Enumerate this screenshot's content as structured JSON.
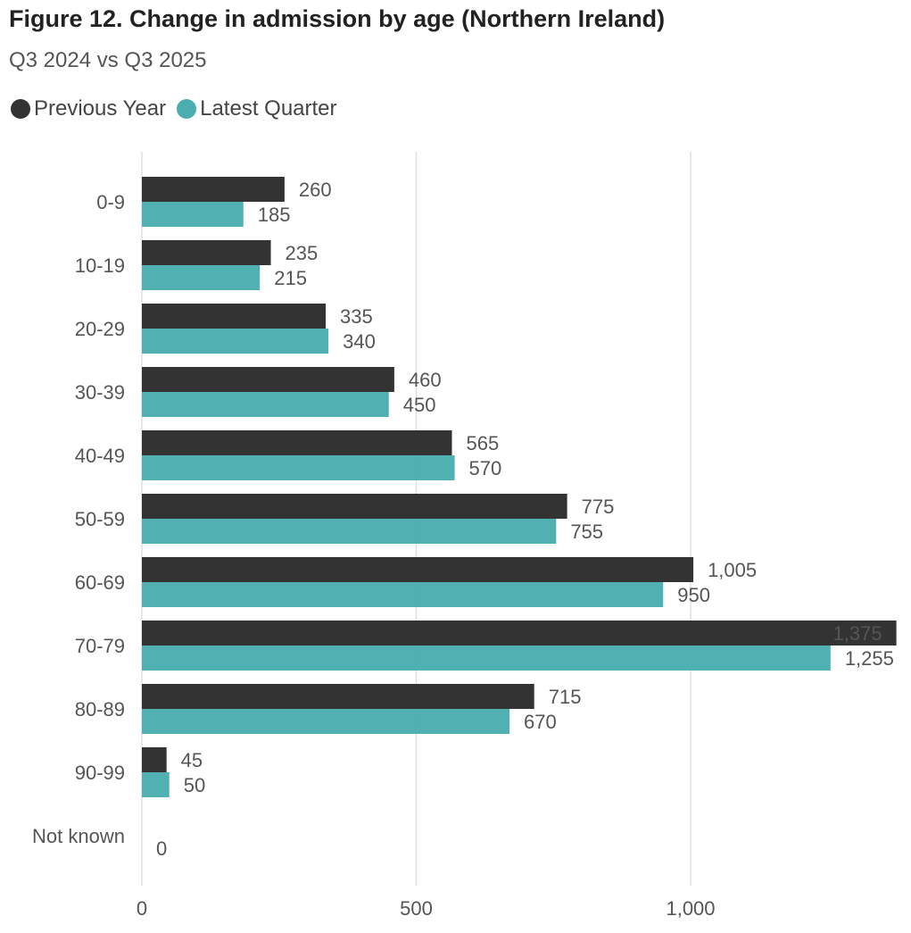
{
  "title": "Figure 12. Change in admission by age (Northern Ireland)",
  "subtitle": "Q3 2024 vs Q3 2025",
  "colors": {
    "previous": "#333333",
    "latest": "#4aadb0",
    "grid": "#e0e0e0",
    "axis_text": "#555555"
  },
  "chart_data": {
    "type": "bar",
    "orientation": "horizontal",
    "title": "Figure 12. Change in admission by age (Northern Ireland)",
    "subtitle": "Q3 2024 vs Q3 2025",
    "categories": [
      "0-9",
      "10-19",
      "20-29",
      "30-39",
      "40-49",
      "50-59",
      "60-69",
      "70-79",
      "80-89",
      "90-99",
      "Not known"
    ],
    "series": [
      {
        "name": "Previous Year",
        "values": [
          260,
          235,
          335,
          460,
          565,
          775,
          1005,
          1375,
          715,
          45,
          0
        ]
      },
      {
        "name": "Latest Quarter",
        "values": [
          185,
          215,
          340,
          450,
          570,
          755,
          950,
          1255,
          670,
          50,
          0
        ]
      }
    ],
    "value_labels": {
      "Previous Year": [
        "260",
        "235",
        "335",
        "460",
        "565",
        "775",
        "1,005",
        "1,375",
        "715",
        "45",
        ""
      ],
      "Latest Quarter": [
        "185",
        "215",
        "340",
        "450",
        "570",
        "755",
        "950",
        "1,255",
        "670",
        "50",
        "0"
      ]
    },
    "xlim": [
      0,
      1400
    ],
    "xticks": [
      0,
      500,
      1000
    ],
    "xtick_labels": [
      "0",
      "500",
      "1,000"
    ],
    "grid": true,
    "legend_position": "top-left"
  }
}
